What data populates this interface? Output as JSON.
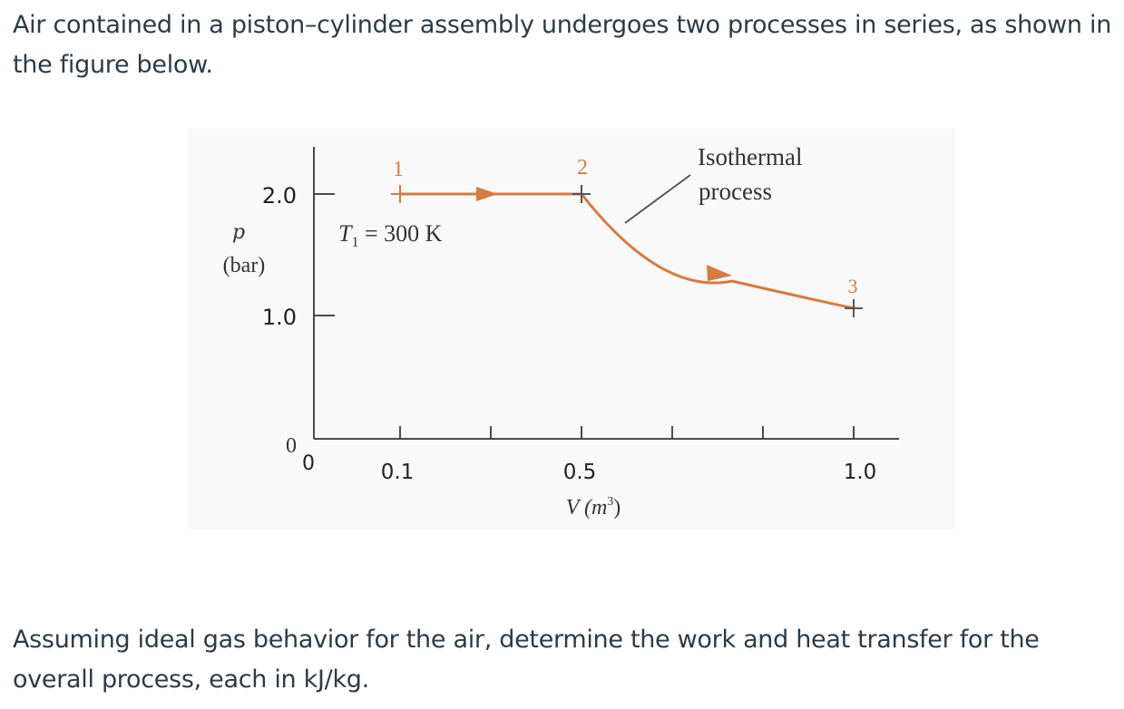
{
  "problem": {
    "intro": "Air contained in a piston–cylinder assembly undergoes two processes in series, as shown in the figure below.",
    "question": "Assuming ideal gas behavior for the air, determine the work and heat transfer for the overall process, each in kJ/kg."
  },
  "figure": {
    "colors": {
      "process_line": "#d97a3e",
      "axis": "#4a4a4a",
      "background": "#f9f9f9"
    },
    "y_axis": {
      "symbol": "p",
      "unit": "(bar)",
      "tick_labels": [
        "2.0",
        "1.0"
      ],
      "origin_label": "0"
    },
    "x_axis": {
      "label_main": "V (m",
      "label_sup": "3",
      "label_end": ")",
      "tick_labels": [
        "0.1",
        "0.5",
        "1.0"
      ],
      "origin_label": "0"
    },
    "states": [
      {
        "label": "1",
        "V": 0.1,
        "p": 2.0
      },
      {
        "label": "2",
        "V": 0.5,
        "p": 2.0
      },
      {
        "label": "3",
        "V": 1.0,
        "p": 1.0
      }
    ],
    "initial_temp": {
      "symbol": "T",
      "subscript": "1",
      "rest": " = 300 K"
    },
    "annotation": {
      "line1": "Isothermal",
      "line2": "process"
    }
  }
}
